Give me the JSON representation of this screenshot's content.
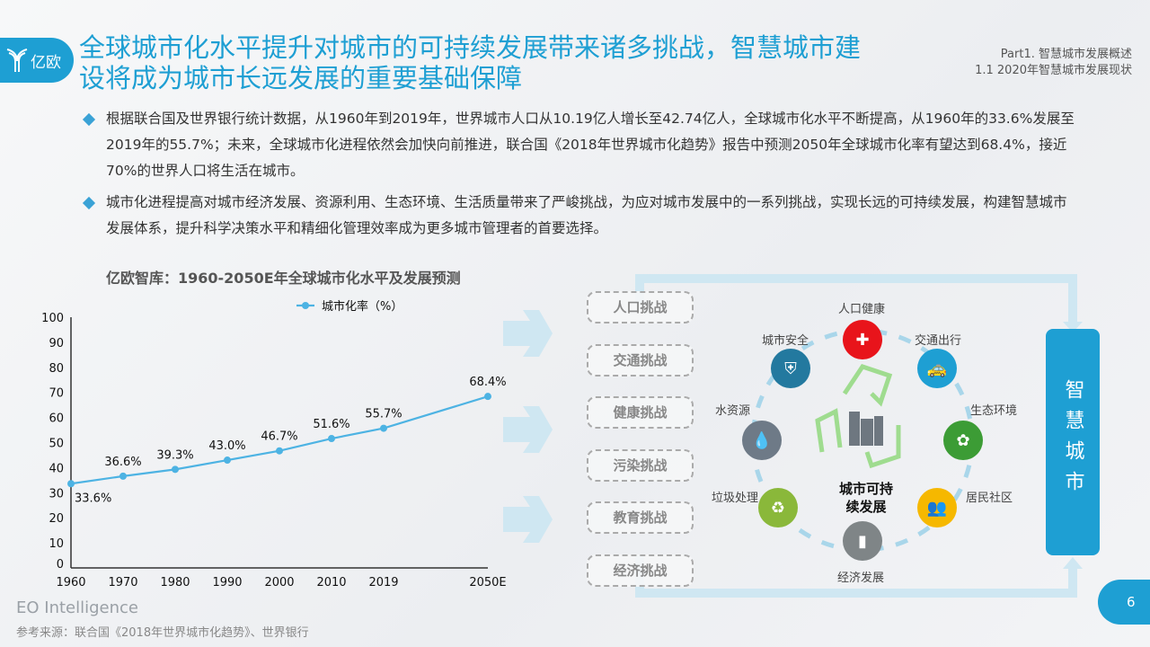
{
  "logo": {
    "text": "亿欧"
  },
  "header": {
    "title": "全球城市化水平提升对城市的可持续发展带来诸多挑战，智慧城市建设将成为城市长远发展的重要基础保障",
    "part": "Part1. 智慧城市发展概述",
    "section": "1.1 2020年智慧城市发展现状"
  },
  "bullets": [
    "根据联合国及世界银行统计数据，从1960年到2019年，世界城市人口从10.19亿人增长至42.74亿人，全球城市化水平不断提高，从1960年的33.6%发展至2019年的55.7%；未来，全球城市化进程依然会加快向前推进，联合国《2018年世界城市化趋势》报告中预测2050年全球城市化率有望达到68.4%，接近70%的世界人口将生活在城市。",
    "城市化进程提高对城市经济发展、资源利用、生态环境、生活质量带来了严峻挑战，为应对城市发展中的一系列挑战，实现长远的可持续发展，构建智慧城市发展体系，提升科学决策水平和精细化管理效率成为更多城市管理者的首要选择。"
  ],
  "chart_data": {
    "type": "line",
    "title": "亿欧智库：1960-2050E年全球城市化水平及发展预测",
    "categories": [
      "1960",
      "1970",
      "1980",
      "1990",
      "2000",
      "2010",
      "2019",
      "2050E"
    ],
    "series": [
      {
        "name": "城市化率（%）",
        "values": [
          33.6,
          36.6,
          39.3,
          43.0,
          46.7,
          51.6,
          55.7,
          68.4
        ],
        "labels": [
          "33.6%",
          "36.6%",
          "39.3%",
          "43.0%",
          "46.7%",
          "51.6%",
          "55.7%",
          "68.4%"
        ]
      }
    ],
    "ylim": [
      0,
      100
    ],
    "yticks": [
      "0",
      "10",
      "20",
      "30",
      "40",
      "50",
      "60",
      "70",
      "80",
      "90",
      "100"
    ],
    "legend": "top",
    "color": "#4db3e3"
  },
  "challenges": [
    "人口挑战",
    "交通挑战",
    "健康挑战",
    "污染挑战",
    "教育挑战",
    "经济挑战"
  ],
  "diagram": {
    "center": "城市可持续发展",
    "center1": "城市可持",
    "center2": "续发展",
    "result": "智慧城市",
    "nodes": [
      {
        "label": "人口健康",
        "icon": "medical-kit-icon",
        "color": "#e8141b",
        "glyph": "✚"
      },
      {
        "label": "交通出行",
        "icon": "taxi-icon",
        "color": "#1e9fd3",
        "glyph": "🚕"
      },
      {
        "label": "生态环境",
        "icon": "tree-icon",
        "color": "#3c9c35",
        "glyph": "✿"
      },
      {
        "label": "居民社区",
        "icon": "people-icon",
        "color": "#f6b800",
        "glyph": "👥"
      },
      {
        "label": "经济发展",
        "icon": "building-icon",
        "color": "#7f8587",
        "glyph": "▮"
      },
      {
        "label": "垃圾处理",
        "icon": "trash-bin-icon",
        "color": "#8ab83a",
        "glyph": "♻"
      },
      {
        "label": "水资源",
        "icon": "water-drop-icon",
        "color": "#6e7a87",
        "glyph": "💧"
      },
      {
        "label": "城市安全",
        "icon": "shield-icon",
        "color": "#23799f",
        "glyph": "⛨"
      }
    ]
  },
  "footer": {
    "brand": "EO Intelligence",
    "source": "参考来源：联合国《2018年世界城市化趋势》、世界银行",
    "page": "6"
  }
}
